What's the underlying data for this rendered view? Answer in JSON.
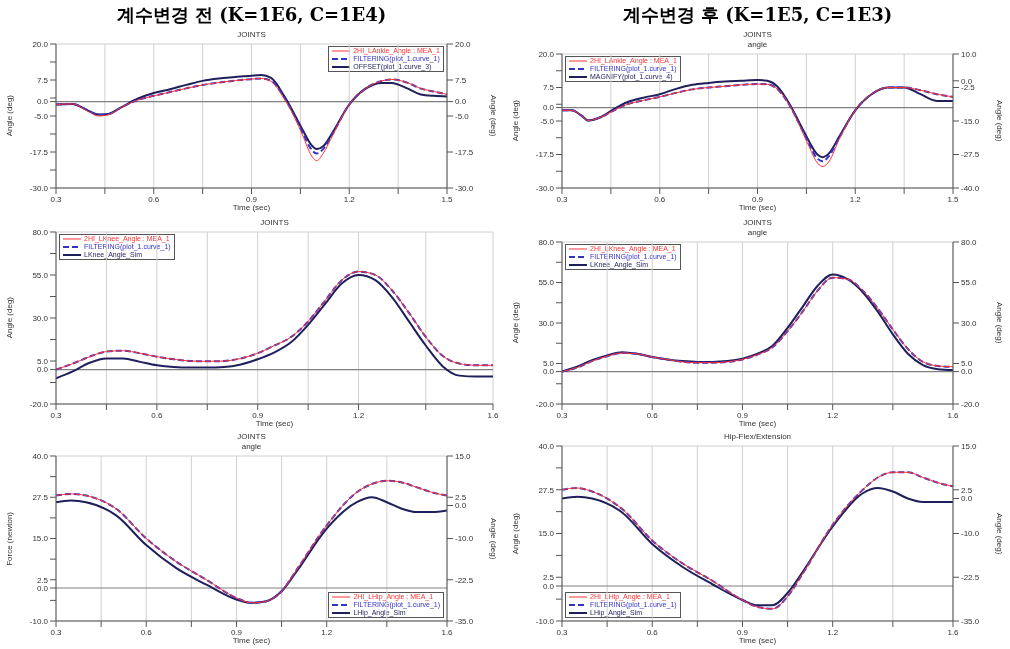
{
  "chart_data": [
    {
      "type": "line",
      "annotations": [
        "계수변경 전 (K=1E6, C=1E4)"
      ],
      "title": "JOINTS",
      "xlabel": "Time (sec)",
      "ylabel": "Angle (deg)",
      "y2label": "Angle (deg)",
      "x": [
        0.3,
        0.35,
        0.4,
        0.43,
        0.46,
        0.5,
        0.55,
        0.6,
        0.65,
        0.7,
        0.75,
        0.8,
        0.85,
        0.9,
        0.93,
        0.96,
        1.0,
        1.03,
        1.06,
        1.08,
        1.1,
        1.12,
        1.15,
        1.2,
        1.25,
        1.3,
        1.33,
        1.38,
        1.42,
        1.46,
        1.5
      ],
      "xlim": [
        0.3,
        1.5
      ],
      "xticks": [
        0.3,
        {
          "value": 0.45,
          "label": null
        },
        0.6,
        {
          "value": 0.75,
          "label": null
        },
        0.9,
        {
          "value": 1.05,
          "label": null
        },
        1.2,
        {
          "value": 1.35,
          "label": null
        },
        1.5
      ],
      "ylim": [
        -30,
        20
      ],
      "yticks": [
        {
          "value": -30,
          "label": "-30.0"
        },
        {
          "value": -23.75,
          "label": null
        },
        {
          "value": -17.5,
          "label": "-17.5"
        },
        {
          "value": -11.25,
          "label": null
        },
        {
          "value": -5,
          "label": "-5.0"
        },
        {
          "value": 0,
          "label": "0.0"
        },
        {
          "value": 1.25,
          "label": null
        },
        {
          "value": 7.5,
          "label": "7.5"
        },
        {
          "value": 13.75,
          "label": null
        },
        {
          "value": 20,
          "label": "20.0"
        }
      ],
      "y2lim": [
        -30,
        20
      ],
      "y2ticks": [
        {
          "value": -30,
          "label": "-30.0"
        },
        {
          "value": -17.5,
          "label": "-17.5"
        },
        {
          "value": -5,
          "label": "-5.0"
        },
        {
          "value": 0,
          "label": "0.0"
        },
        {
          "value": 7.5,
          "label": "7.5"
        },
        {
          "value": 20,
          "label": "20.0"
        }
      ],
      "grid": true,
      "legend": "top right",
      "ref_lines": [
        {
          "axis": "y",
          "value": 0,
          "color": "#808080"
        }
      ],
      "series": [
        {
          "name": "2HI_LAnkle_Angle : MEA_1",
          "color": "#ff3333",
          "line_style": "solid",
          "values": [
            -1,
            -0.8,
            -3.5,
            -5,
            -4.6,
            -2,
            0.5,
            2,
            3.3,
            4.6,
            5.8,
            6.6,
            7.3,
            7.8,
            8,
            7,
            1,
            -5,
            -12.5,
            -18,
            -20.5,
            -18,
            -11.5,
            -1,
            4.5,
            7.2,
            7.7,
            6.5,
            4.5,
            3.5,
            2.5
          ]
        },
        {
          "name": "FILTERING(plot_1.curve_1)",
          "color": "#3333cc",
          "line_style": "dashed",
          "values": [
            -1,
            -0.8,
            -3.2,
            -4.6,
            -4.4,
            -2,
            0.5,
            2,
            3.3,
            4.6,
            5.8,
            6.6,
            7.3,
            7.8,
            8,
            7.2,
            1.5,
            -4.5,
            -11.5,
            -16,
            -18,
            -16.5,
            -11,
            -1,
            4.5,
            7.2,
            7.7,
            6.5,
            4.5,
            3.5,
            2.5
          ]
        },
        {
          "name": "OFFSET(plot_1.curve_3)",
          "color": "#1f1f5c",
          "line_style": "solid",
          "values": [
            -1,
            -0.8,
            -3.2,
            -4.5,
            -4.3,
            -2,
            1,
            3,
            4.3,
            5.8,
            7.2,
            8,
            8.5,
            9,
            9.2,
            8.2,
            2,
            -4,
            -10.5,
            -14.5,
            -16.5,
            -15.5,
            -10.5,
            -1,
            4.5,
            6.5,
            6.5,
            4.5,
            2.5,
            2,
            1.8
          ]
        }
      ]
    },
    {
      "type": "line",
      "annotations": [
        "계수변경 후 (K=1E5, C=1E3)"
      ],
      "title": "JOINTS",
      "subtitle": "angle",
      "xlabel": "Time (sec)",
      "ylabel": "Angle (deg)",
      "y2label": "Angle (deg)",
      "x": [
        0.3,
        0.33,
        0.36,
        0.38,
        0.42,
        0.46,
        0.5,
        0.55,
        0.6,
        0.65,
        0.7,
        0.75,
        0.8,
        0.85,
        0.9,
        0.93,
        0.96,
        1.0,
        1.03,
        1.06,
        1.08,
        1.1,
        1.12,
        1.15,
        1.2,
        1.25,
        1.3,
        1.35,
        1.4,
        1.45,
        1.5
      ],
      "xlim": [
        0.3,
        1.5
      ],
      "xticks": [
        0.3,
        {
          "value": 0.45,
          "label": null
        },
        0.6,
        {
          "value": 0.75,
          "label": null
        },
        0.9,
        {
          "value": 1.05,
          "label": null
        },
        1.2,
        {
          "value": 1.35,
          "label": null
        },
        1.5
      ],
      "ylim": [
        -30,
        20
      ],
      "yticks": [
        {
          "value": -30,
          "label": "-30.0"
        },
        {
          "value": -23.75,
          "label": null
        },
        {
          "value": -17.5,
          "label": "-17.5"
        },
        {
          "value": -11.25,
          "label": null
        },
        {
          "value": -5,
          "label": "-5.0"
        },
        {
          "value": 0,
          "label": "0.0"
        },
        {
          "value": 1.25,
          "label": null
        },
        {
          "value": 7.5,
          "label": "7.5"
        },
        {
          "value": 13.75,
          "label": null
        },
        {
          "value": 20,
          "label": "20.0"
        }
      ],
      "y2lim": [
        -40,
        10
      ],
      "y2ticks": [
        {
          "value": -40,
          "label": "-40.0"
        },
        {
          "value": -27.5,
          "label": "-27.5"
        },
        {
          "value": -15,
          "label": "-15.0"
        },
        {
          "value": -2.5,
          "label": "-2.5"
        },
        {
          "value": 0,
          "label": "0.0"
        },
        {
          "value": 10,
          "label": "10.0"
        }
      ],
      "grid": true,
      "legend": "top left",
      "ref_lines": [
        {
          "axis": "y",
          "value": 0,
          "color": "#808080"
        }
      ],
      "series": [
        {
          "name": "2HI_LAnkle_Angle : MEA_1",
          "color": "#ff3333",
          "line_style": "solid",
          "values": [
            -1,
            -1,
            -3,
            -4.8,
            -3.5,
            -1,
            1.2,
            2.7,
            4,
            5.5,
            6.8,
            7.5,
            8,
            8.5,
            8.8,
            8.7,
            7,
            0.5,
            -7,
            -15,
            -20,
            -22,
            -20,
            -12,
            -1,
            5,
            7.5,
            7.5,
            6.5,
            5,
            4
          ]
        },
        {
          "name": "FILTERING(plot_1.curve_1)",
          "color": "#3333cc",
          "line_style": "dashed",
          "values": [
            -1,
            -1,
            -3,
            -4.8,
            -3.5,
            -1,
            1.2,
            2.7,
            4,
            5.5,
            6.8,
            7.5,
            8,
            8.5,
            8.8,
            8.7,
            7,
            0.5,
            -6.5,
            -14,
            -18.5,
            -20,
            -18,
            -11.5,
            -1,
            5,
            7.5,
            7.5,
            6.5,
            5,
            4
          ]
        },
        {
          "name": "MAGNIFY(plot_1.curve_4)",
          "color": "#1f1f5c",
          "line_style": "solid",
          "values": [
            -1,
            -1,
            -3,
            -4.8,
            -3.5,
            -0.5,
            2,
            3.7,
            5,
            7,
            8.5,
            9.2,
            9.7,
            10,
            10.3,
            10,
            8,
            1,
            -6,
            -13,
            -17,
            -18.5,
            -17,
            -11,
            -1,
            5,
            7.5,
            7.5,
            5,
            2.5,
            2.5
          ]
        }
      ]
    },
    {
      "type": "line",
      "title": "JOINTS",
      "xlabel": "Time (sec)",
      "ylabel": "Angle (deg)",
      "x": [
        0.3,
        0.35,
        0.4,
        0.45,
        0.5,
        0.55,
        0.6,
        0.65,
        0.7,
        0.75,
        0.8,
        0.85,
        0.9,
        0.95,
        1.0,
        1.05,
        1.1,
        1.15,
        1.2,
        1.25,
        1.3,
        1.35,
        1.4,
        1.45,
        1.5,
        1.55,
        1.6
      ],
      "xlim": [
        0.3,
        1.6
      ],
      "xticks": [
        0.3,
        {
          "value": 0.45,
          "label": null
        },
        0.6,
        {
          "value": 0.75,
          "label": null
        },
        0.9,
        {
          "value": 1.05,
          "label": null
        },
        1.2,
        {
          "value": 1.4,
          "label": null
        },
        1.6
      ],
      "ylim": [
        -20,
        80
      ],
      "yticks": [
        {
          "value": -20,
          "label": "-20.0"
        },
        {
          "value": -7.5,
          "label": null
        },
        {
          "value": 0,
          "label": "0.0"
        },
        {
          "value": 5,
          "label": "5.0"
        },
        {
          "value": 17.5,
          "label": null
        },
        {
          "value": 30,
          "label": "30.0"
        },
        {
          "value": 42.5,
          "label": null
        },
        {
          "value": 55,
          "label": "55.0"
        },
        {
          "value": 67.5,
          "label": null
        },
        {
          "value": 80,
          "label": "80.0"
        }
      ],
      "grid": true,
      "legend": "top left",
      "ref_lines": [
        {
          "axis": "y",
          "value": 0,
          "color": "#808080"
        }
      ],
      "series": [
        {
          "name": "2HI_LKnee_Angle : MEA_1",
          "color": "#ff3333",
          "line_style": "solid",
          "values": [
            0,
            3.5,
            7.5,
            10.5,
            11,
            9.5,
            7.5,
            6,
            5,
            4.8,
            5,
            6.5,
            9.5,
            14,
            19,
            28,
            40,
            52,
            57,
            55,
            46,
            33,
            19,
            8,
            3.5,
            2.5,
            2.5
          ]
        },
        {
          "name": "FILTERING(plot_1.curve_1)",
          "color": "#3333cc",
          "line_style": "dashed",
          "values": [
            0,
            3.5,
            7.5,
            10.5,
            11,
            9.5,
            7.5,
            6,
            5,
            4.8,
            5,
            6.5,
            9.5,
            14,
            19,
            28,
            40,
            52,
            57,
            55,
            46,
            33,
            19,
            8,
            3.5,
            2.5,
            2.5
          ]
        },
        {
          "name": "LKnee_Angle_Sim",
          "color": "#1f1f5c",
          "line_style": "solid",
          "values": [
            -5,
            -1,
            4,
            6.5,
            6.5,
            4.5,
            2.5,
            1.5,
            1.2,
            1.2,
            1.5,
            3,
            6,
            10,
            16,
            26,
            38,
            50,
            55,
            52,
            42,
            28,
            14,
            2,
            -3.5,
            -4,
            -4
          ]
        }
      ]
    },
    {
      "type": "line",
      "title": "JOINTS",
      "subtitle": "angle",
      "xlabel": "Time (sec)",
      "ylabel": "Angle (deg)",
      "y2label": "Angle (deg)",
      "x": [
        0.3,
        0.35,
        0.4,
        0.45,
        0.5,
        0.55,
        0.6,
        0.65,
        0.7,
        0.75,
        0.8,
        0.85,
        0.9,
        0.95,
        1.0,
        1.05,
        1.1,
        1.15,
        1.2,
        1.25,
        1.3,
        1.35,
        1.4,
        1.45,
        1.5,
        1.55,
        1.6
      ],
      "xlim": [
        0.3,
        1.6
      ],
      "xticks": [
        0.3,
        {
          "value": 0.45,
          "label": null
        },
        0.6,
        {
          "value": 0.75,
          "label": null
        },
        0.9,
        {
          "value": 1.05,
          "label": null
        },
        1.2,
        {
          "value": 1.4,
          "label": null
        },
        1.6
      ],
      "ylim": [
        -20,
        80
      ],
      "yticks": [
        {
          "value": -20,
          "label": "-20.0"
        },
        {
          "value": -7.5,
          "label": null
        },
        {
          "value": 0,
          "label": "0.0"
        },
        {
          "value": 5,
          "label": "5.0"
        },
        {
          "value": 17.5,
          "label": null
        },
        {
          "value": 30,
          "label": "30.0"
        },
        {
          "value": 42.5,
          "label": null
        },
        {
          "value": 55,
          "label": "55.0"
        },
        {
          "value": 67.5,
          "label": null
        },
        {
          "value": 80,
          "label": "80.0"
        }
      ],
      "y2lim": [
        -20,
        80
      ],
      "y2ticks": [
        {
          "value": -20,
          "label": "-20.0"
        },
        {
          "value": 0,
          "label": "0.0"
        },
        {
          "value": 5,
          "label": "5.0"
        },
        {
          "value": 30,
          "label": "30.0"
        },
        {
          "value": 55,
          "label": "55.0"
        },
        {
          "value": 80,
          "label": "80.0"
        }
      ],
      "grid": true,
      "legend": "top left",
      "ref_lines": [
        {
          "axis": "y",
          "value": 0,
          "color": "#808080"
        }
      ],
      "series": [
        {
          "name": "2HI_LKnee_Angle : MEA_1",
          "color": "#ff3333",
          "line_style": "solid",
          "values": [
            0,
            2.5,
            6.5,
            9.5,
            11.5,
            11,
            9,
            7.5,
            6,
            5.5,
            5.5,
            6,
            7.5,
            10.5,
            15,
            25,
            37,
            50,
            58,
            57,
            50,
            39,
            26,
            14,
            6,
            3.5,
            3
          ]
        },
        {
          "name": "FILTERING(plot_1.curve_1)",
          "color": "#3333cc",
          "line_style": "dashed",
          "values": [
            0,
            2.5,
            6.5,
            9.5,
            11.5,
            11,
            9,
            7.5,
            6,
            5.5,
            5.5,
            6,
            7.5,
            10.5,
            15,
            25,
            37,
            50,
            58,
            57,
            50,
            39,
            26,
            14,
            6,
            3.5,
            3
          ]
        },
        {
          "name": "LKnee_Angle_Sim",
          "color": "#1f1f5c",
          "line_style": "solid",
          "values": [
            0,
            3,
            7,
            10,
            12,
            11,
            9,
            7.5,
            6.5,
            6,
            6,
            6.5,
            8,
            11,
            16,
            27,
            40,
            53,
            60,
            57,
            49,
            37,
            23,
            11,
            4,
            1.5,
            1
          ]
        }
      ]
    },
    {
      "type": "line",
      "title": "JOINTS",
      "subtitle": "angle",
      "xlabel": "Time (sec)",
      "ylabel": "Force (newton)",
      "y2label": "Angle (deg)",
      "x": [
        0.3,
        0.35,
        0.4,
        0.5,
        0.6,
        0.7,
        0.8,
        0.9,
        0.95,
        1.0,
        1.05,
        1.1,
        1.2,
        1.3,
        1.35,
        1.4,
        1.45,
        1.5,
        1.55,
        1.6
      ],
      "xlim": [
        0.3,
        1.6
      ],
      "xticks": [
        0.3,
        {
          "value": 0.45,
          "label": null
        },
        0.6,
        {
          "value": 0.75,
          "label": null
        },
        0.9,
        {
          "value": 1.05,
          "label": null
        },
        1.2,
        {
          "value": 1.4,
          "label": null
        },
        1.6
      ],
      "ylim": [
        -10,
        40
      ],
      "yticks": [
        {
          "value": -10,
          "label": "-10.0"
        },
        {
          "value": -3.75,
          "label": null
        },
        {
          "value": 0,
          "label": "0.0"
        },
        {
          "value": 2.5,
          "label": "2.5"
        },
        {
          "value": 8.75,
          "label": null
        },
        {
          "value": 15,
          "label": "15.0"
        },
        {
          "value": 21.25,
          "label": null
        },
        {
          "value": 27.5,
          "label": "27.5"
        },
        {
          "value": 33.75,
          "label": null
        },
        {
          "value": 40,
          "label": "40.0"
        }
      ],
      "y2lim": [
        -35,
        15
      ],
      "y2ticks": [
        {
          "value": -35,
          "label": "-35.0"
        },
        {
          "value": -22.5,
          "label": "-22.5"
        },
        {
          "value": -10,
          "label": "-10.0"
        },
        {
          "value": 0,
          "label": "0.0"
        },
        {
          "value": 2.5,
          "label": "2.5"
        },
        {
          "value": 15,
          "label": "15.0"
        }
      ],
      "grid": true,
      "legend": "bottom right",
      "ref_lines": [
        {
          "axis": "y",
          "value": 0,
          "color": "#808080"
        }
      ],
      "series": [
        {
          "name": "2HI_LHip_Angle : MEA_1",
          "color": "#ff3333",
          "line_style": "solid",
          "values": [
            28,
            28.5,
            28,
            24,
            15,
            8,
            2.5,
            -3,
            -4.5,
            -4,
            -1,
            5.5,
            19,
            29,
            31.5,
            32.5,
            32,
            30.5,
            29,
            28
          ]
        },
        {
          "name": "FILTERING(plot_1.curve_1)",
          "color": "#3333cc",
          "line_style": "dashed",
          "values": [
            28,
            28.5,
            28,
            24,
            15,
            8,
            2.5,
            -3,
            -4.5,
            -4,
            -1,
            5.5,
            19,
            29,
            31.5,
            32.5,
            32,
            30.5,
            29,
            28
          ]
        },
        {
          "name": "LHip_Angle_Sim",
          "color": "#1f1f5c",
          "line_style": "solid",
          "values": [
            26,
            26.5,
            26,
            22,
            13,
            6,
            1,
            -3.5,
            -4.5,
            -4,
            -1,
            5,
            18,
            26,
            27.5,
            26,
            24,
            23,
            23,
            23.5
          ]
        }
      ]
    },
    {
      "type": "line",
      "title": "Hip-Flex/Extension",
      "xlabel": "Time (sec)",
      "ylabel": "Angle (deg)",
      "y2label": "Angle (deg)",
      "x": [
        0.3,
        0.35,
        0.4,
        0.5,
        0.6,
        0.7,
        0.8,
        0.9,
        0.95,
        1.0,
        1.05,
        1.1,
        1.2,
        1.3,
        1.35,
        1.4,
        1.45,
        1.5,
        1.55,
        1.6
      ],
      "xlim": [
        0.3,
        1.6
      ],
      "xticks": [
        0.3,
        {
          "value": 0.45,
          "label": null
        },
        0.6,
        {
          "value": 0.75,
          "label": null
        },
        0.9,
        {
          "value": 1.05,
          "label": null
        },
        1.2,
        {
          "value": 1.4,
          "label": null
        },
        1.6
      ],
      "ylim": [
        -10,
        40
      ],
      "yticks": [
        {
          "value": -10,
          "label": "-10.0"
        },
        {
          "value": -3.75,
          "label": null
        },
        {
          "value": 0,
          "label": "0.0"
        },
        {
          "value": 2.5,
          "label": "2.5"
        },
        {
          "value": 8.75,
          "label": null
        },
        {
          "value": 15,
          "label": "15.0"
        },
        {
          "value": 21.25,
          "label": null
        },
        {
          "value": 27.5,
          "label": "27.5"
        },
        {
          "value": 33.75,
          "label": null
        },
        {
          "value": 40,
          "label": "40.0"
        }
      ],
      "y2lim": [
        -35,
        15
      ],
      "y2ticks": [
        {
          "value": -35,
          "label": "-35.0"
        },
        {
          "value": -22.5,
          "label": "-22.5"
        },
        {
          "value": -10,
          "label": "-10.0"
        },
        {
          "value": 0,
          "label": "0.0"
        },
        {
          "value": 2.5,
          "label": "2.5"
        },
        {
          "value": 15,
          "label": "15.0"
        }
      ],
      "grid": true,
      "legend": "bottom left",
      "ref_lines": [
        {
          "axis": "y",
          "value": 0,
          "color": "#808080"
        }
      ],
      "series": [
        {
          "name": "2HI_LHip_Angle : MEA_1",
          "color": "#ff3333",
          "line_style": "solid",
          "values": [
            27.5,
            28,
            27,
            22,
            13,
            6.5,
            1.5,
            -4,
            -6,
            -6.5,
            -3,
            3.5,
            17.5,
            27.5,
            31,
            32.5,
            32.5,
            31,
            29.5,
            28.5
          ]
        },
        {
          "name": "FILTERING(plot_1.curve_1)",
          "color": "#3333cc",
          "line_style": "dashed",
          "values": [
            27.5,
            28,
            27,
            22,
            13,
            6.5,
            1.5,
            -4,
            -6,
            -6.5,
            -3,
            3.5,
            17.5,
            27.5,
            31,
            32.5,
            32.5,
            31,
            29.5,
            28.5
          ]
        },
        {
          "name": "LHip_Angle_Sim",
          "color": "#1f1f5c",
          "line_style": "solid",
          "values": [
            25,
            25.5,
            25,
            21,
            12,
            5.5,
            0.5,
            -4,
            -5.5,
            -5.5,
            -2,
            4,
            17,
            26.5,
            28,
            27,
            25,
            24,
            24,
            24
          ]
        }
      ]
    }
  ]
}
